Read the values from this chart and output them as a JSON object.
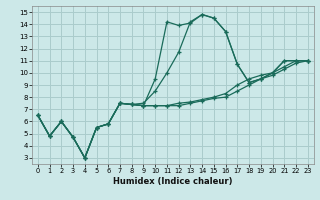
{
  "xlabel": "Humidex (Indice chaleur)",
  "bg_color": "#cce8e8",
  "grid_color": "#aacccc",
  "line_color": "#1a6b5a",
  "xlim": [
    -0.5,
    23.5
  ],
  "ylim": [
    2.5,
    15.5
  ],
  "xticks": [
    0,
    1,
    2,
    3,
    4,
    5,
    6,
    7,
    8,
    9,
    10,
    11,
    12,
    13,
    14,
    15,
    16,
    17,
    18,
    19,
    20,
    21,
    22,
    23
  ],
  "yticks": [
    3,
    4,
    5,
    6,
    7,
    8,
    9,
    10,
    11,
    12,
    13,
    14,
    15
  ],
  "series": [
    [
      6.5,
      4.8,
      6.0,
      4.7,
      3.0,
      5.5,
      5.8,
      7.5,
      7.4,
      7.3,
      9.5,
      14.2,
      13.9,
      14.1,
      14.8,
      14.5,
      13.4,
      10.7,
      9.2,
      9.5,
      10.0,
      11.0,
      11.0,
      11.0
    ],
    [
      6.5,
      4.8,
      6.0,
      4.7,
      3.0,
      5.5,
      5.8,
      7.5,
      7.4,
      7.5,
      8.5,
      10.0,
      11.7,
      14.2,
      14.8,
      14.5,
      13.4,
      10.7,
      9.2,
      9.5,
      10.0,
      11.0,
      11.0,
      11.0
    ],
    [
      6.5,
      4.8,
      6.0,
      4.7,
      3.0,
      5.5,
      5.8,
      7.5,
      7.4,
      7.3,
      7.3,
      7.3,
      7.5,
      7.6,
      7.8,
      8.0,
      8.3,
      9.0,
      9.5,
      9.8,
      10.0,
      10.5,
      11.0,
      11.0
    ],
    [
      6.5,
      4.8,
      6.0,
      4.7,
      3.0,
      5.5,
      5.8,
      7.5,
      7.4,
      7.3,
      7.3,
      7.3,
      7.3,
      7.5,
      7.7,
      7.9,
      8.0,
      8.5,
      9.0,
      9.5,
      9.8,
      10.3,
      10.8,
      11.0
    ]
  ]
}
